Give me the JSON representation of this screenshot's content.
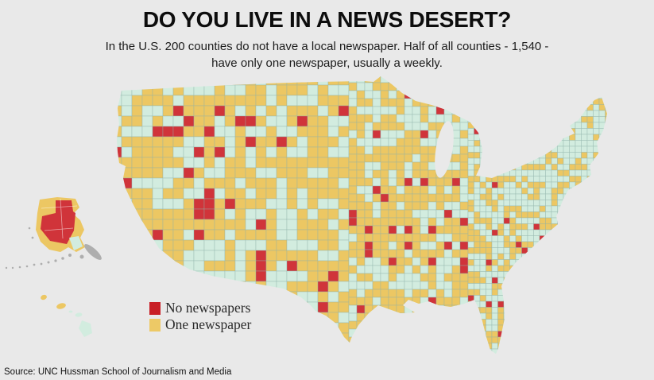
{
  "header": {
    "title": "DO YOU LIVE IN A NEWS DESERT?",
    "subtitle_line1": "In the U.S. 200 counties do not have a local newspaper.  Half of all counties - 1,540 -",
    "subtitle_line2": "have only one newspaper, usually a weekly."
  },
  "legend": {
    "items": [
      {
        "label": "No newspapers",
        "color": "#c81f26"
      },
      {
        "label": "One newspaper",
        "color": "#edc966"
      }
    ]
  },
  "source_line": "Source:  UNC Hussman School of Journalism and Media",
  "map": {
    "colors": {
      "no_newspapers": "#d0343a",
      "one_newspaper": "#ecc763",
      "two_or_more": "#d2ecdf",
      "no_data_gray": "#aeaeae",
      "county_border": "#8fb3aa",
      "background": "#e9e9e9"
    }
  },
  "chart_data": {
    "type": "choropleth",
    "title": "DO YOU LIVE IN A NEWS DESERT?",
    "geography": "United States counties (contiguous U.S. with Alaska and Hawaii insets)",
    "legend_position": "bottom-left",
    "legend": [
      {
        "label": "No newspapers",
        "color": "#c81f26",
        "counties": 200
      },
      {
        "label": "One newspaper",
        "color": "#edc966",
        "counties": 1540
      }
    ],
    "other_fills": [
      {
        "meaning": "counties not in either legend category",
        "color": "#d2ecdf"
      },
      {
        "meaning": "gray areas (Alaska panhandle / Aleutians)",
        "color": "#aeaeae"
      }
    ],
    "facts": [
      "In the U.S. 200 counties do not have a local newspaper.",
      "Half of all counties - 1,540 - have only one newspaper, usually a weekly."
    ],
    "source": "UNC Hussman School of Journalism and Media"
  }
}
